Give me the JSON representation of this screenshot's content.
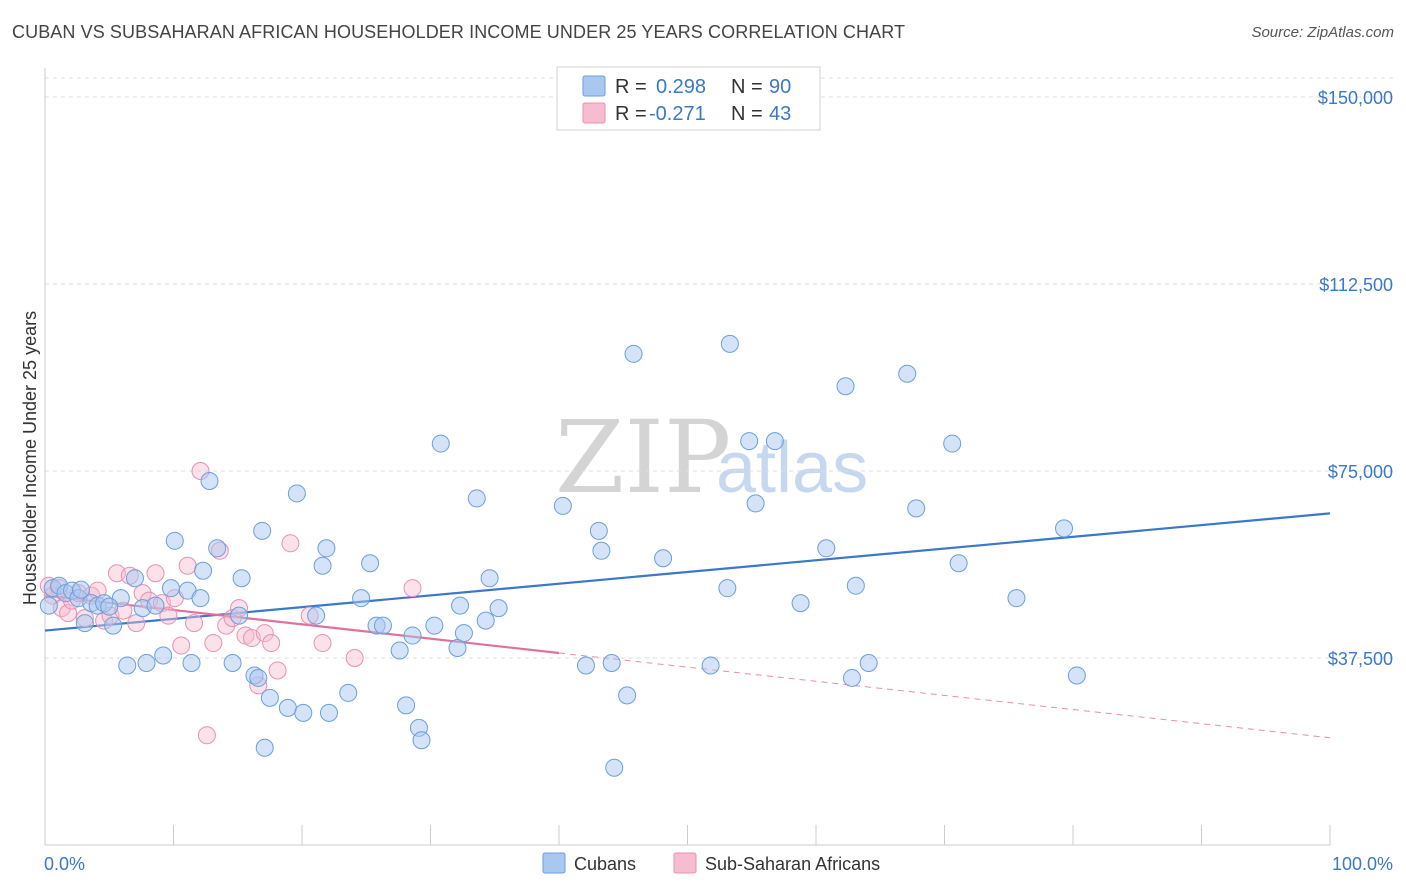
{
  "title": "CUBAN VS SUBSAHARAN AFRICAN HOUSEHOLDER INCOME UNDER 25 YEARS CORRELATION CHART",
  "source": "Source: ZipAtlas.com",
  "watermark": {
    "zip": "ZIP",
    "atlas": "atlas"
  },
  "colors": {
    "blue": "#3a78c9",
    "blue_fill": "#a9c8f0",
    "pink": "#e0719a",
    "pink_fill": "#f6bcd0",
    "grid": "#dddddd"
  },
  "legend": {
    "rows": [
      {
        "r_label": "R =",
        "r_value": "0.298",
        "n_label": "N =",
        "n_value": "90"
      },
      {
        "r_label": "R =",
        "r_value": "-0.271",
        "n_label": "N =",
        "n_value": "43"
      }
    ]
  },
  "bottom_legend": {
    "cubans": "Cubans",
    "africans": "Sub-Saharan Africans"
  },
  "chart_data": {
    "type": "scatter",
    "title": "CUBAN VS SUBSAHARAN AFRICAN HOUSEHOLDER INCOME UNDER 25 YEARS CORRELATION CHART",
    "xlabel": "",
    "ylabel": "Householder Income Under 25 years",
    "xlim": [
      0,
      100
    ],
    "ylim": [
      0,
      155000
    ],
    "x_tick_labels": [
      "0.0%",
      "100.0%"
    ],
    "y_ticks": [
      37500,
      75000,
      112500,
      150000
    ],
    "y_tick_labels": [
      "$37,500",
      "$75,000",
      "$112,500",
      "$150,000"
    ],
    "grid": true,
    "series": [
      {
        "name": "Cubans",
        "color": "#3a78c9",
        "points": [
          [
            0.3,
            48000
          ],
          [
            0.6,
            51500
          ],
          [
            1.1,
            52000
          ],
          [
            1.6,
            50500
          ],
          [
            2.1,
            51000
          ],
          [
            2.6,
            49500
          ],
          [
            3.1,
            44500
          ],
          [
            3.6,
            48500
          ],
          [
            4.1,
            48000
          ],
          [
            4.6,
            48500
          ],
          [
            5.3,
            44000
          ],
          [
            5.9,
            49500
          ],
          [
            6.4,
            36000
          ],
          [
            7.0,
            53500
          ],
          [
            7.6,
            47500
          ],
          [
            7.9,
            36500
          ],
          [
            8.6,
            48000
          ],
          [
            9.2,
            38000
          ],
          [
            9.8,
            51500
          ],
          [
            10.1,
            61000
          ],
          [
            11.1,
            51000
          ],
          [
            11.4,
            36500
          ],
          [
            12.1,
            49500
          ],
          [
            12.3,
            55000
          ],
          [
            12.8,
            73000
          ],
          [
            13.4,
            59500
          ],
          [
            14.6,
            36500
          ],
          [
            15.1,
            46000
          ],
          [
            15.3,
            53500
          ],
          [
            16.3,
            34000
          ],
          [
            16.6,
            33500
          ],
          [
            16.9,
            63000
          ],
          [
            17.1,
            19500
          ],
          [
            17.5,
            29500
          ],
          [
            18.9,
            27500
          ],
          [
            19.6,
            70500
          ],
          [
            20.1,
            26500
          ],
          [
            21.1,
            46000
          ],
          [
            21.6,
            56000
          ],
          [
            21.9,
            59500
          ],
          [
            22.1,
            26500
          ],
          [
            23.6,
            30500
          ],
          [
            24.6,
            49500
          ],
          [
            25.3,
            56500
          ],
          [
            25.8,
            44000
          ],
          [
            26.3,
            44000
          ],
          [
            27.6,
            39000
          ],
          [
            28.1,
            28000
          ],
          [
            28.6,
            42000
          ],
          [
            29.1,
            23500
          ],
          [
            29.3,
            21000
          ],
          [
            30.3,
            44000
          ],
          [
            30.8,
            80500
          ],
          [
            32.1,
            39500
          ],
          [
            32.3,
            48000
          ],
          [
            32.6,
            42500
          ],
          [
            33.6,
            69500
          ],
          [
            34.3,
            45000
          ],
          [
            34.6,
            53500
          ],
          [
            35.3,
            47500
          ],
          [
            40.3,
            68000
          ],
          [
            42.1,
            36000
          ],
          [
            43.1,
            63000
          ],
          [
            43.3,
            59000
          ],
          [
            44.1,
            36500
          ],
          [
            44.3,
            15500
          ],
          [
            45.3,
            30000
          ],
          [
            45.8,
            98500
          ],
          [
            48.1,
            57500
          ],
          [
            51.8,
            36000
          ],
          [
            53.1,
            51500
          ],
          [
            53.3,
            100500
          ],
          [
            54.8,
            81000
          ],
          [
            55.3,
            68500
          ],
          [
            56.8,
            81000
          ],
          [
            58.8,
            48500
          ],
          [
            60.8,
            59500
          ],
          [
            62.3,
            92000
          ],
          [
            62.8,
            33500
          ],
          [
            63.1,
            52000
          ],
          [
            64.1,
            36500
          ],
          [
            67.1,
            94500
          ],
          [
            67.8,
            67500
          ],
          [
            70.6,
            80500
          ],
          [
            71.1,
            56500
          ],
          [
            75.6,
            49500
          ],
          [
            79.3,
            63500
          ],
          [
            80.3,
            34000
          ],
          [
            2.8,
            51200
          ],
          [
            5.0,
            47800
          ]
        ],
        "trend": {
          "x": [
            0,
            100
          ],
          "y": [
            43000,
            66500
          ]
        }
      },
      {
        "name": "Sub-Saharan Africans",
        "color": "#e0719a",
        "points": [
          [
            0.3,
            52000
          ],
          [
            0.6,
            50000
          ],
          [
            1.1,
            51500
          ],
          [
            1.3,
            47500
          ],
          [
            1.8,
            46500
          ],
          [
            2.1,
            49000
          ],
          [
            2.6,
            50500
          ],
          [
            3.1,
            45500
          ],
          [
            3.6,
            50000
          ],
          [
            4.1,
            51000
          ],
          [
            4.6,
            45000
          ],
          [
            5.1,
            46000
          ],
          [
            5.6,
            54500
          ],
          [
            6.1,
            47000
          ],
          [
            6.6,
            54000
          ],
          [
            7.1,
            44500
          ],
          [
            7.6,
            50500
          ],
          [
            8.1,
            49000
          ],
          [
            8.6,
            54500
          ],
          [
            9.1,
            48500
          ],
          [
            9.6,
            46000
          ],
          [
            10.1,
            49500
          ],
          [
            10.6,
            40000
          ],
          [
            11.1,
            56000
          ],
          [
            11.6,
            44500
          ],
          [
            12.1,
            75000
          ],
          [
            12.6,
            22000
          ],
          [
            13.1,
            40500
          ],
          [
            13.6,
            59000
          ],
          [
            14.1,
            44000
          ],
          [
            14.6,
            45500
          ],
          [
            15.1,
            47500
          ],
          [
            15.6,
            42000
          ],
          [
            16.1,
            41500
          ],
          [
            16.6,
            32000
          ],
          [
            17.1,
            42500
          ],
          [
            17.6,
            40500
          ],
          [
            18.1,
            35000
          ],
          [
            19.1,
            60500
          ],
          [
            20.6,
            46000
          ],
          [
            21.6,
            40500
          ],
          [
            24.1,
            37500
          ],
          [
            28.6,
            51500
          ]
        ],
        "trend": {
          "x": [
            0,
            40
          ],
          "y": [
            50000,
            38500
          ]
        },
        "trend_extension": {
          "x": [
            40,
            100
          ],
          "y": [
            38500,
            21500
          ]
        }
      }
    ]
  }
}
